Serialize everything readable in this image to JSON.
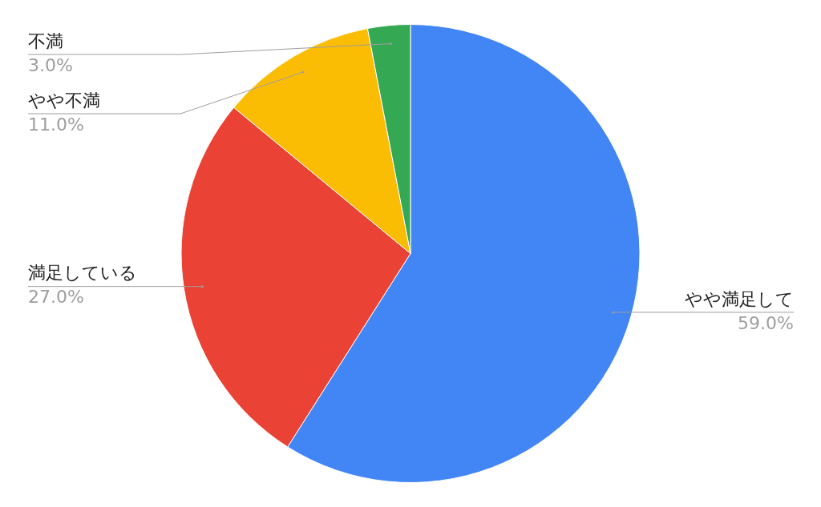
{
  "chart_data": {
    "type": "pie",
    "categories": [
      "やや満足して",
      "満足している",
      "やや不満",
      "不満"
    ],
    "values": [
      59.0,
      27.0,
      11.0,
      3.0
    ],
    "colors": [
      "#4285f4",
      "#ea4335",
      "#fbbc04",
      "#34a853"
    ],
    "value_labels": [
      "59.0%",
      "27.0%",
      "11.0%",
      "3.0%"
    ],
    "legend": false
  }
}
